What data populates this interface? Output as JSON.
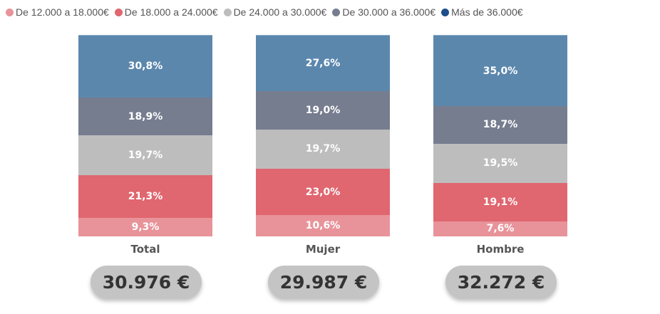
{
  "chart_data": {
    "type": "bar",
    "stacked": "100%",
    "categories": [
      "Total",
      "Mujer",
      "Hombre"
    ],
    "series": [
      {
        "name": "De 12.000 a 18.000€",
        "color": "#e8939a",
        "values": [
          9.3,
          10.6,
          7.6
        ],
        "labels": [
          "9,3%",
          "10,6%",
          "7,6%"
        ]
      },
      {
        "name": "De 18.000 a 24.000€",
        "color": "#e0666f",
        "values": [
          21.3,
          23.0,
          19.1
        ],
        "labels": [
          "21,3%",
          "23,0%",
          "19,1%"
        ]
      },
      {
        "name": "De 24.000 a 30.000€",
        "color": "#bdbdbd",
        "values": [
          19.7,
          19.7,
          19.5
        ],
        "labels": [
          "19,7%",
          "19,7%",
          "19,5%"
        ]
      },
      {
        "name": "De 30.000 a 36.000€",
        "color": "#767d8f",
        "values": [
          18.9,
          19.0,
          18.7
        ],
        "labels": [
          "18,9%",
          "19,0%",
          "18,7%"
        ]
      },
      {
        "name": "Más de 36.000€",
        "color": "#5b87ad",
        "legend_color": "#1e4f8c",
        "values": [
          30.8,
          27.6,
          35.0
        ],
        "labels": [
          "30,8%",
          "27,6%",
          "35,0%"
        ]
      }
    ],
    "averages": [
      "30.976 €",
      "29.987 €",
      "32.272 €"
    ],
    "legend_position": "top"
  }
}
